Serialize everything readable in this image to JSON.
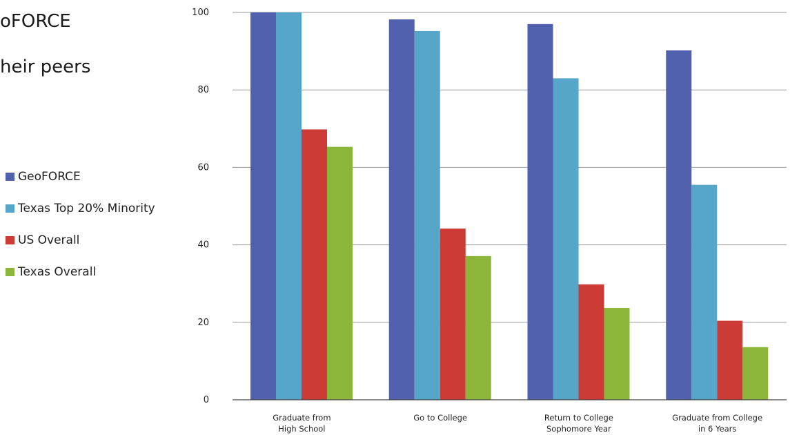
{
  "slide": {
    "line1": "oFORCE",
    "line2": "heir peers"
  },
  "chart_data": {
    "type": "bar",
    "categories": [
      [
        "Graduate from",
        "High School"
      ],
      [
        "Go to College"
      ],
      [
        "Return to College",
        "Sophomore Year"
      ],
      [
        "Graduate from College",
        "in 6 Years"
      ]
    ],
    "series": [
      {
        "name": "GeoFORCE",
        "color": "#5161ad",
        "values": [
          100,
          98.2,
          97,
          90.2
        ]
      },
      {
        "name": "Texas Top 20% Minority",
        "color": "#55a6c8",
        "values": [
          100,
          95.2,
          83,
          55.5
        ]
      },
      {
        "name": "US Overall",
        "color": "#cc3b35",
        "values": [
          69.8,
          44.2,
          29.8,
          20.4
        ]
      },
      {
        "name": "Texas Overall",
        "color": "#8cb63a",
        "values": [
          65.3,
          37.1,
          23.7,
          13.6
        ]
      }
    ],
    "yticks": [
      0,
      20,
      40,
      60,
      80,
      100
    ],
    "ylim": [
      0,
      100
    ],
    "grid": true,
    "legend_position": "left"
  }
}
